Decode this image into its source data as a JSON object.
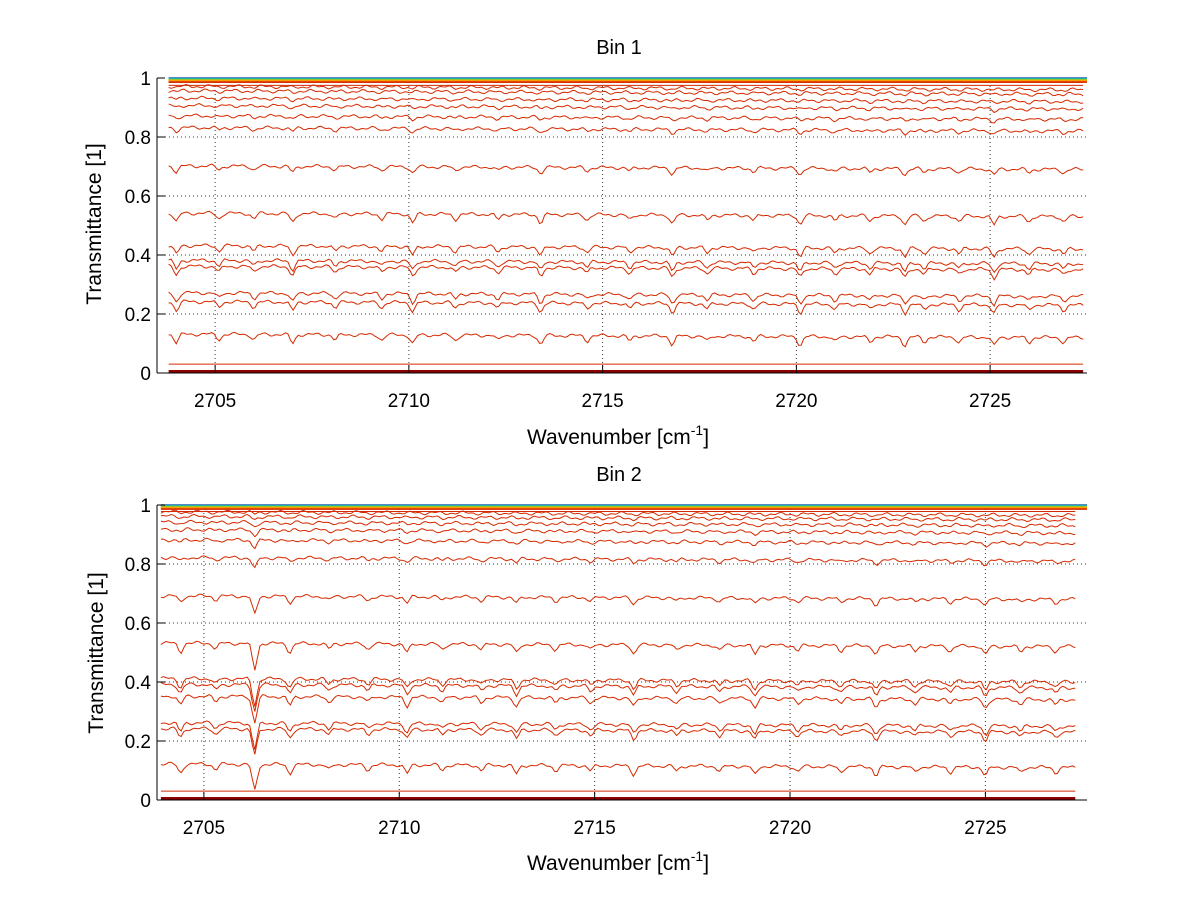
{
  "figure": {
    "background": "#ffffff"
  },
  "chart_data": [
    {
      "type": "line",
      "title": "Bin 1",
      "xlabel": "Wavenumber [cm",
      "xlabel_sup": "-1",
      "xlabel_suffix": "]",
      "ylabel": "Transmittance [1]",
      "xlim": [
        2703.5,
        2727.5
      ],
      "ylim": [
        0,
        1
      ],
      "x_ticks": [
        2705,
        2710,
        2715,
        2720,
        2725
      ],
      "y_ticks": [
        0,
        0.2,
        0.4,
        0.6,
        0.8,
        1
      ],
      "y_tick_labels": [
        "0",
        "0.2",
        "0.4",
        "0.6",
        "0.8",
        "1"
      ],
      "grid": true,
      "x_data": [
        2703.8,
        2727.4
      ],
      "line_color": "#d42a00",
      "top_band_colors": [
        "#1f5fb4",
        "#18b2b2",
        "#6cc43a",
        "#f2c300",
        "#ff7a00",
        "#d42a00"
      ],
      "series_levels": [
        0.995,
        0.99,
        0.985,
        0.975,
        0.96,
        0.945,
        0.92,
        0.895,
        0.86,
        0.82,
        0.69,
        0.53,
        0.42,
        0.37,
        0.35,
        0.26,
        0.23,
        0.12,
        0.03,
        0.005
      ],
      "absorption_lines": [
        2704.0,
        2705.1,
        2706.0,
        2707.0,
        2708.1,
        2709.3,
        2710.1,
        2711.2,
        2712.3,
        2713.4,
        2714.6,
        2715.7,
        2716.8,
        2717.7,
        2718.9,
        2720.1,
        2721.0,
        2721.9,
        2722.8,
        2723.3,
        2724.2,
        2725.1,
        2726.0,
        2726.9
      ]
    },
    {
      "type": "line",
      "title": "Bin 2",
      "xlabel": "Wavenumber [cm",
      "xlabel_sup": "-1",
      "xlabel_suffix": "]",
      "ylabel": "Transmittance [1]",
      "xlim": [
        2703.8,
        2727.6
      ],
      "ylim": [
        0,
        1
      ],
      "x_ticks": [
        2705,
        2710,
        2715,
        2720,
        2725
      ],
      "y_ticks": [
        0,
        0.2,
        0.4,
        0.6,
        0.8,
        1
      ],
      "y_tick_labels": [
        "0",
        "0.2",
        "0.4",
        "0.6",
        "0.8",
        "1"
      ],
      "grid": true,
      "x_data": [
        2703.9,
        2727.3
      ],
      "line_color": "#d42a00",
      "top_band_colors": [
        "#1f5fb4",
        "#18b2b2",
        "#6cc43a",
        "#f2c300",
        "#ff7a00",
        "#d42a00"
      ],
      "series_levels": [
        0.997,
        0.993,
        0.988,
        0.978,
        0.965,
        0.95,
        0.93,
        0.905,
        0.87,
        0.81,
        0.68,
        0.52,
        0.4,
        0.38,
        0.34,
        0.25,
        0.23,
        0.11,
        0.03,
        0.005
      ],
      "absorption_lines": [
        2704.4,
        2705.3,
        2706.3,
        2707.2,
        2708.2,
        2709.2,
        2710.2,
        2711.1,
        2712.1,
        2713.0,
        2714.0,
        2714.9,
        2716.0,
        2717.1,
        2718.2,
        2719.1,
        2720.2,
        2721.3,
        2722.2,
        2723.2,
        2724.1,
        2725.0,
        2725.9,
        2726.8
      ]
    }
  ]
}
